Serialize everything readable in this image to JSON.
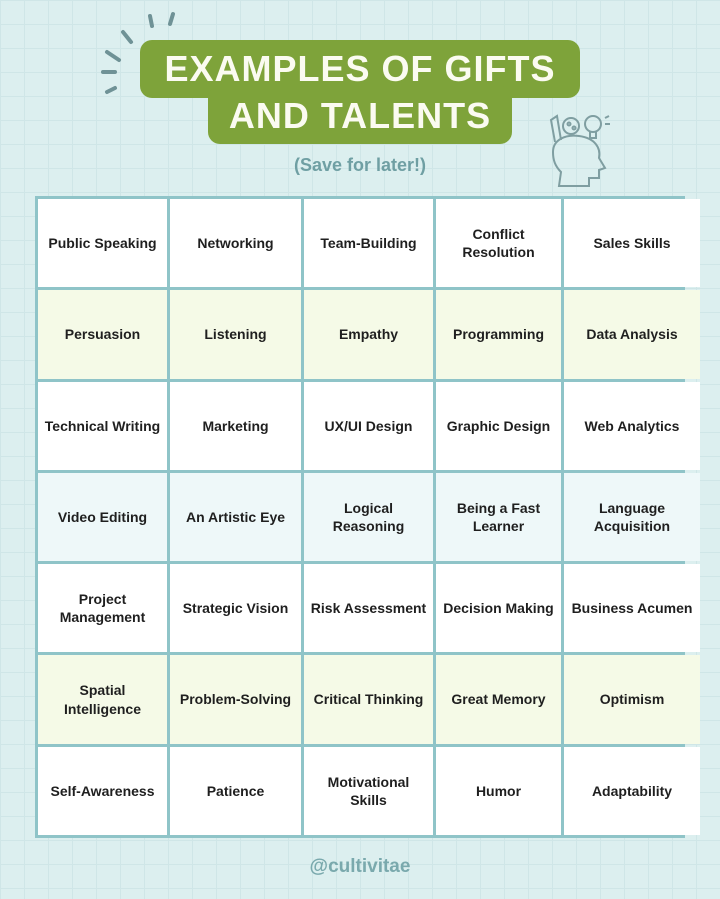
{
  "title": {
    "line1": "EXAMPLES OF GIFTS",
    "line2": "AND TALENTS"
  },
  "subtitle": "(Save for later!)",
  "colors": {
    "title_bg": "#7ea33a",
    "grid_border": "#8fc4c8",
    "background": "#dcefef",
    "row_green": "#f5fae7",
    "row_blue": "#eef8f9"
  },
  "icons": [
    "sparkle-rays-icon",
    "head-ideas-icon"
  ],
  "grid": [
    [
      "Public Speaking",
      "Networking",
      "Team-Building",
      "Conflict Resolution",
      "Sales Skills"
    ],
    [
      "Persuasion",
      "Listening",
      "Empathy",
      "Programming",
      "Data Analysis"
    ],
    [
      "Technical Writing",
      "Marketing",
      "UX/UI Design",
      "Graphic Design",
      "Web Analytics"
    ],
    [
      "Video Editing",
      "An Artistic Eye",
      "Logical Reasoning",
      "Being a Fast Learner",
      "Language Acquisition"
    ],
    [
      "Project Management",
      "Strategic Vision",
      "Risk Assessment",
      "Decision Making",
      "Business Acumen"
    ],
    [
      "Spatial Intelligence",
      "Problem-Solving",
      "Critical Thinking",
      "Great Memory",
      "Optimism"
    ],
    [
      "Self-Awareness",
      "Patience",
      "Motivational Skills",
      "Humor",
      "Adaptability"
    ]
  ],
  "footer": "@cultivitae"
}
